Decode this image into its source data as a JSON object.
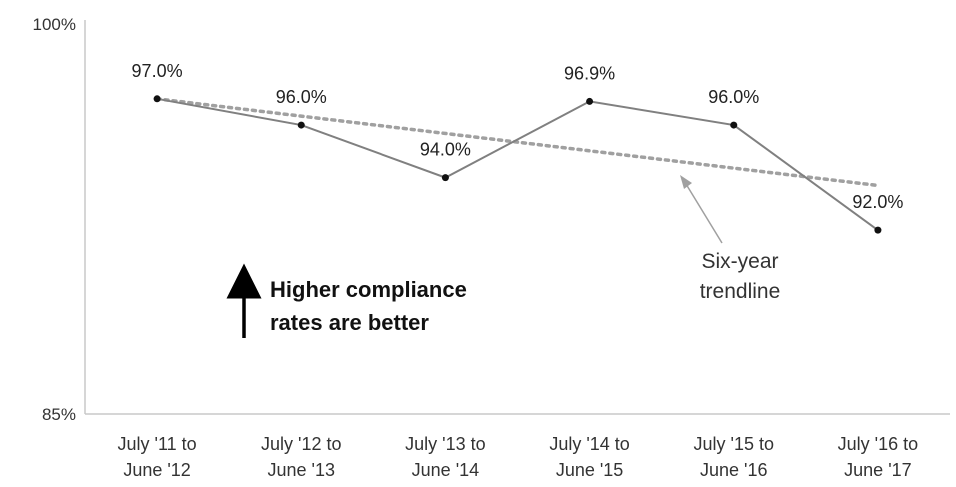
{
  "chart_data": {
    "type": "line",
    "categories": [
      [
        "July '11 to",
        "June '12"
      ],
      [
        "July '12 to",
        "June '13"
      ],
      [
        "July '13 to",
        "June '14"
      ],
      [
        "July '14 to",
        "June '15"
      ],
      [
        "July '15 to",
        "June '16"
      ],
      [
        "July '16 to",
        "June '17"
      ]
    ],
    "series": [
      {
        "values": [
          97.0,
          96.0,
          94.0,
          96.9,
          96.0,
          92.0
        ],
        "color": "#808080"
      }
    ],
    "data_labels": [
      "97.0%",
      "96.0%",
      "94.0%",
      "96.9%",
      "96.0%",
      "92.0%"
    ],
    "trendline": {
      "start": 97.0,
      "end": 93.7,
      "color": "#a0a0a0",
      "style": "dotted"
    },
    "ylim": [
      85,
      100
    ],
    "y_tick_labels": [
      "100%",
      "85%"
    ],
    "grid": false,
    "title": "",
    "xlabel": "",
    "ylabel": "",
    "annotations": {
      "note_lines": [
        "Higher compliance",
        "rates are better"
      ],
      "trend_lines": [
        "Six-year",
        "trendline"
      ]
    }
  }
}
